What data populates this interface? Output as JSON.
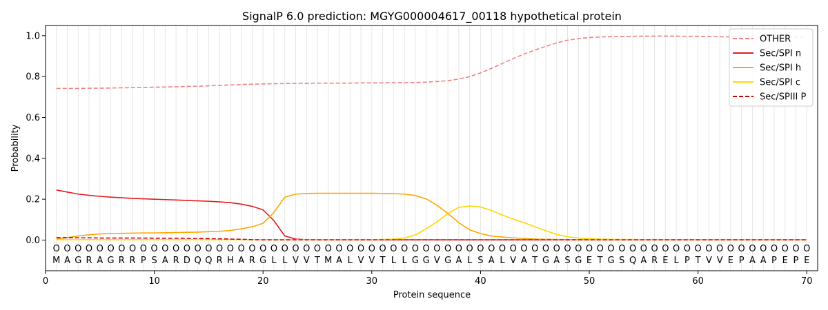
{
  "chart_data": {
    "type": "line",
    "title": "SignalP 6.0 prediction: MGYG000004617_00118 hypothetical protein",
    "xlabel": "Protein sequence",
    "ylabel": "Probability",
    "xlim": [
      0,
      71
    ],
    "ylim": [
      -0.15,
      1.05
    ],
    "x_ticks": [
      0,
      10,
      20,
      30,
      40,
      50,
      60,
      70
    ],
    "y_ticks": [
      0.0,
      0.2,
      0.4,
      0.6,
      0.8,
      1.0
    ],
    "grid": "vertical lines at each residue",
    "legend_position": "top-right",
    "sequence": [
      "M",
      "A",
      "G",
      "R",
      "A",
      "G",
      "R",
      "R",
      "P",
      "S",
      "A",
      "R",
      "D",
      "Q",
      "Q",
      "R",
      "H",
      "A",
      "R",
      "G",
      "L",
      "L",
      "V",
      "V",
      "T",
      "M",
      "A",
      "L",
      "V",
      "V",
      "T",
      "L",
      "L",
      "G",
      "G",
      "V",
      "G",
      "A",
      "L",
      "S",
      "A",
      "L",
      "V",
      "A",
      "T",
      "G",
      "A",
      "S",
      "G",
      "E",
      "T",
      "G",
      "S",
      "Q",
      "A",
      "R",
      "E",
      "L",
      "P",
      "T",
      "V",
      "V",
      "E",
      "P",
      "A",
      "A",
      "P",
      "E",
      "P",
      "E"
    ],
    "marker_symbol": "O",
    "series": [
      {
        "name": "OTHER",
        "color": "#f08080",
        "dash": "dashed",
        "values": [
          0.742,
          0.742,
          0.742,
          0.743,
          0.743,
          0.744,
          0.745,
          0.746,
          0.747,
          0.748,
          0.749,
          0.75,
          0.752,
          0.753,
          0.755,
          0.757,
          0.759,
          0.761,
          0.763,
          0.764,
          0.765,
          0.766,
          0.767,
          0.767,
          0.768,
          0.768,
          0.768,
          0.768,
          0.769,
          0.769,
          0.769,
          0.77,
          0.77,
          0.771,
          0.773,
          0.776,
          0.78,
          0.788,
          0.8,
          0.818,
          0.84,
          0.864,
          0.888,
          0.91,
          0.93,
          0.948,
          0.965,
          0.978,
          0.986,
          0.991,
          0.994,
          0.995,
          0.996,
          0.997,
          0.998,
          0.998,
          0.998,
          0.998,
          0.997,
          0.997,
          0.996,
          0.995,
          0.994,
          0.994,
          0.994,
          0.993,
          0.993,
          0.993,
          0.993,
          0.993
        ]
      },
      {
        "name": "Sec/SPI n",
        "color": "#e41a1c",
        "dash": "solid",
        "values": [
          0.245,
          0.235,
          0.225,
          0.219,
          0.214,
          0.21,
          0.207,
          0.204,
          0.202,
          0.2,
          0.198,
          0.196,
          0.194,
          0.192,
          0.19,
          0.187,
          0.183,
          0.176,
          0.165,
          0.148,
          0.095,
          0.02,
          0.005,
          0.002,
          0.001,
          0.001,
          0.001,
          0.001,
          0.001,
          0.001,
          0.001,
          0.001,
          0.001,
          0.001,
          0.001,
          0.001,
          0.001,
          0.001,
          0.001,
          0.001,
          0.001,
          0.001,
          0.001,
          0.001,
          0.001,
          0.001,
          0.001,
          0.001,
          0.001,
          0.001,
          0.001,
          0.001,
          0.001,
          0.001,
          0.001,
          0.001,
          0.001,
          0.001,
          0.001,
          0.001,
          0.001,
          0.001,
          0.001,
          0.001,
          0.001,
          0.001,
          0.001,
          0.001,
          0.001,
          0.001
        ]
      },
      {
        "name": "Sec/SPI h",
        "color": "#ffa500",
        "dash": "solid",
        "values": [
          0.005,
          0.012,
          0.02,
          0.026,
          0.03,
          0.032,
          0.033,
          0.034,
          0.035,
          0.035,
          0.036,
          0.037,
          0.038,
          0.039,
          0.041,
          0.043,
          0.047,
          0.055,
          0.065,
          0.082,
          0.135,
          0.21,
          0.225,
          0.228,
          0.229,
          0.229,
          0.229,
          0.229,
          0.229,
          0.229,
          0.228,
          0.227,
          0.225,
          0.218,
          0.202,
          0.17,
          0.13,
          0.085,
          0.05,
          0.032,
          0.02,
          0.015,
          0.011,
          0.008,
          0.005,
          0.004,
          0.003,
          0.002,
          0.002,
          0.002,
          0.002,
          0.002,
          0.002,
          0.002,
          0.002,
          0.002,
          0.002,
          0.002,
          0.002,
          0.002,
          0.002,
          0.002,
          0.002,
          0.002,
          0.002,
          0.002,
          0.002,
          0.002,
          0.002,
          0.002
        ]
      },
      {
        "name": "Sec/SPI c",
        "color": "#ffd700",
        "dash": "solid",
        "values": [
          0.002,
          0.002,
          0.002,
          0.002,
          0.002,
          0.002,
          0.002,
          0.002,
          0.002,
          0.002,
          0.002,
          0.002,
          0.002,
          0.002,
          0.002,
          0.002,
          0.002,
          0.002,
          0.002,
          0.002,
          0.002,
          0.002,
          0.002,
          0.002,
          0.002,
          0.002,
          0.002,
          0.002,
          0.002,
          0.002,
          0.003,
          0.005,
          0.01,
          0.025,
          0.055,
          0.09,
          0.13,
          0.16,
          0.167,
          0.162,
          0.145,
          0.123,
          0.103,
          0.085,
          0.065,
          0.046,
          0.028,
          0.016,
          0.01,
          0.007,
          0.005,
          0.004,
          0.003,
          0.003,
          0.002,
          0.002,
          0.002,
          0.002,
          0.002,
          0.002,
          0.002,
          0.002,
          0.002,
          0.002,
          0.002,
          0.002,
          0.002,
          0.002,
          0.002,
          0.002
        ]
      },
      {
        "name": "Sec/SPIII P",
        "color": "#cc0000",
        "dash": "dashed",
        "values": [
          0.012,
          0.012,
          0.011,
          0.011,
          0.01,
          0.01,
          0.01,
          0.01,
          0.01,
          0.009,
          0.009,
          0.009,
          0.008,
          0.008,
          0.007,
          0.006,
          0.005,
          0.004,
          0.002,
          0.001,
          0.001,
          0.001,
          0.001,
          0.001,
          0.001,
          0.001,
          0.001,
          0.001,
          0.001,
          0.001,
          0.001,
          0.001,
          0.001,
          0.001,
          0.001,
          0.001,
          0.001,
          0.001,
          0.001,
          0.001,
          0.001,
          0.001,
          0.001,
          0.001,
          0.001,
          0.001,
          0.001,
          0.001,
          0.001,
          0.001,
          0.001,
          0.001,
          0.001,
          0.001,
          0.001,
          0.001,
          0.001,
          0.001,
          0.001,
          0.001,
          0.001,
          0.001,
          0.001,
          0.001,
          0.001,
          0.001,
          0.001,
          0.001,
          0.001,
          0.001
        ]
      }
    ]
  }
}
